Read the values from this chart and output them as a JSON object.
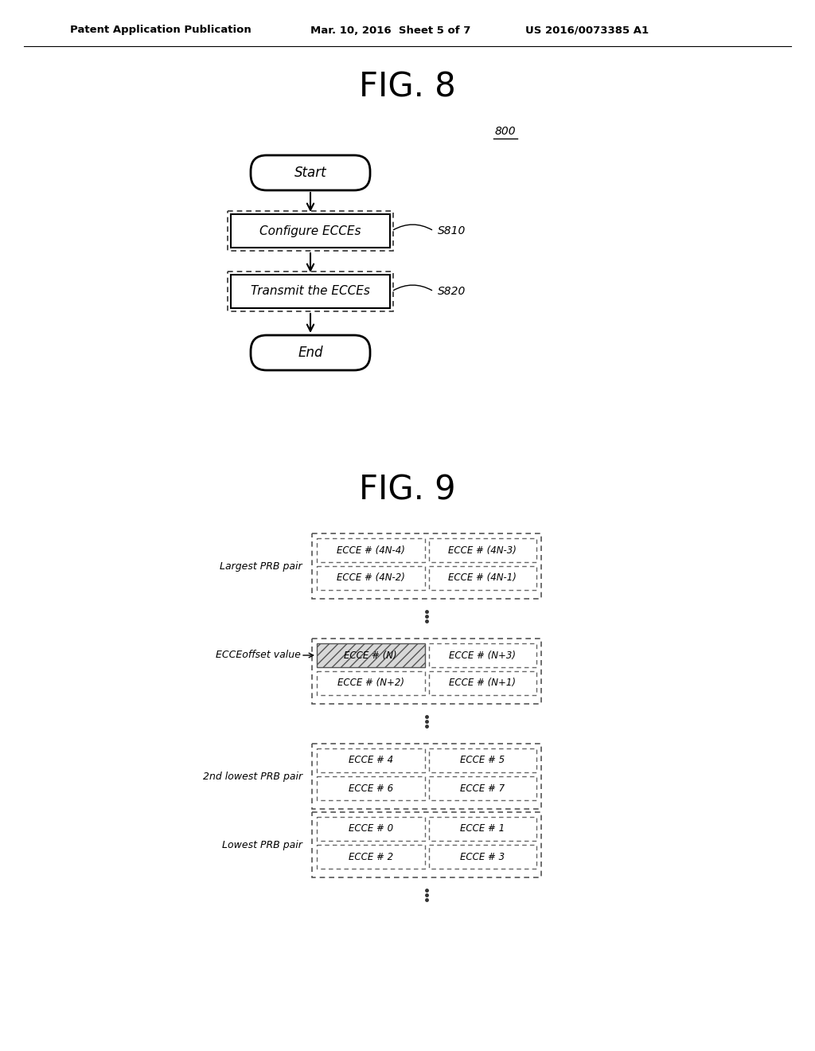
{
  "bg_color": "#ffffff",
  "header_left": "Patent Application Publication",
  "header_mid": "Mar. 10, 2016  Sheet 5 of 7",
  "header_right": "US 2016/0073385 A1",
  "fig8_title": "FIG. 8",
  "fig8_label": "800",
  "flow_start": "Start",
  "flow_step1": "Configure ECCEs",
  "flow_step1_label": "S810",
  "flow_step2": "Transmit the ECCEs",
  "flow_step2_label": "S820",
  "flow_end": "End",
  "fig9_title": "FIG. 9",
  "largest_prb_label": "Largest PRB pair",
  "ecce_offset_label": "ECCEoffset value",
  "second_lowest_label": "2nd lowest PRB pair",
  "lowest_label": "Lowest PRB pair",
  "largest_row1": [
    "ECCE # (4N-4)",
    "ECCE # (4N-3)"
  ],
  "largest_row2": [
    "ECCE # (4N-2)",
    "ECCE # (4N-1)"
  ],
  "offset_row1": [
    "ECCE # (N)",
    "ECCE # (N+3)"
  ],
  "offset_row2": [
    "ECCE # (N+2)",
    "ECCE # (N+1)"
  ],
  "second_row1": [
    "ECCE # 4",
    "ECCE # 5"
  ],
  "second_row2": [
    "ECCE # 6",
    "ECCE # 7"
  ],
  "lowest_row1": [
    "ECCE # 0",
    "ECCE # 1"
  ],
  "lowest_row2": [
    "ECCE # 2",
    "ECCE # 3"
  ]
}
